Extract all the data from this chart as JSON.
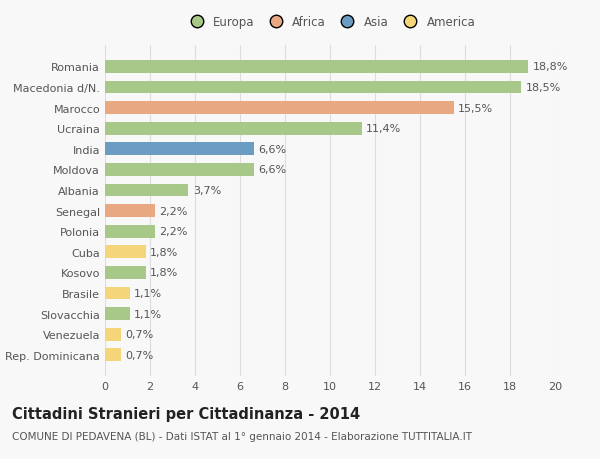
{
  "categories": [
    "Rep. Dominicana",
    "Venezuela",
    "Slovacchia",
    "Brasile",
    "Kosovo",
    "Cuba",
    "Polonia",
    "Senegal",
    "Albania",
    "Moldova",
    "India",
    "Ucraina",
    "Marocco",
    "Macedonia d/N.",
    "Romania"
  ],
  "values": [
    0.7,
    0.7,
    1.1,
    1.1,
    1.8,
    1.8,
    2.2,
    2.2,
    3.7,
    6.6,
    6.6,
    11.4,
    15.5,
    18.5,
    18.8
  ],
  "labels": [
    "0,7%",
    "0,7%",
    "1,1%",
    "1,1%",
    "1,8%",
    "1,8%",
    "2,2%",
    "2,2%",
    "3,7%",
    "6,6%",
    "6,6%",
    "11,4%",
    "15,5%",
    "18,5%",
    "18,8%"
  ],
  "colors": [
    "#f5d57a",
    "#f5d57a",
    "#a8c88a",
    "#f5d57a",
    "#a8c88a",
    "#f5d57a",
    "#a8c88a",
    "#e8a882",
    "#a8c88a",
    "#a8c88a",
    "#6b9dc2",
    "#a8c88a",
    "#e8a882",
    "#a8c88a",
    "#a8c88a"
  ],
  "legend_labels": [
    "Europa",
    "Africa",
    "Asia",
    "America"
  ],
  "legend_colors": [
    "#a8c88a",
    "#e8a882",
    "#6b9dc2",
    "#f5d57a"
  ],
  "title": "Cittadini Stranieri per Cittadinanza - 2014",
  "subtitle": "COMUNE DI PEDAVENA (BL) - Dati ISTAT al 1° gennaio 2014 - Elaborazione TUTTITALIA.IT",
  "xlim": [
    0,
    20
  ],
  "xticks": [
    0,
    2,
    4,
    6,
    8,
    10,
    12,
    14,
    16,
    18,
    20
  ],
  "bg_color": "#f8f8f8",
  "grid_color": "#dddddd",
  "bar_height": 0.62,
  "title_fontsize": 10.5,
  "subtitle_fontsize": 7.5,
  "label_fontsize": 8,
  "tick_fontsize": 8,
  "legend_fontsize": 8.5
}
